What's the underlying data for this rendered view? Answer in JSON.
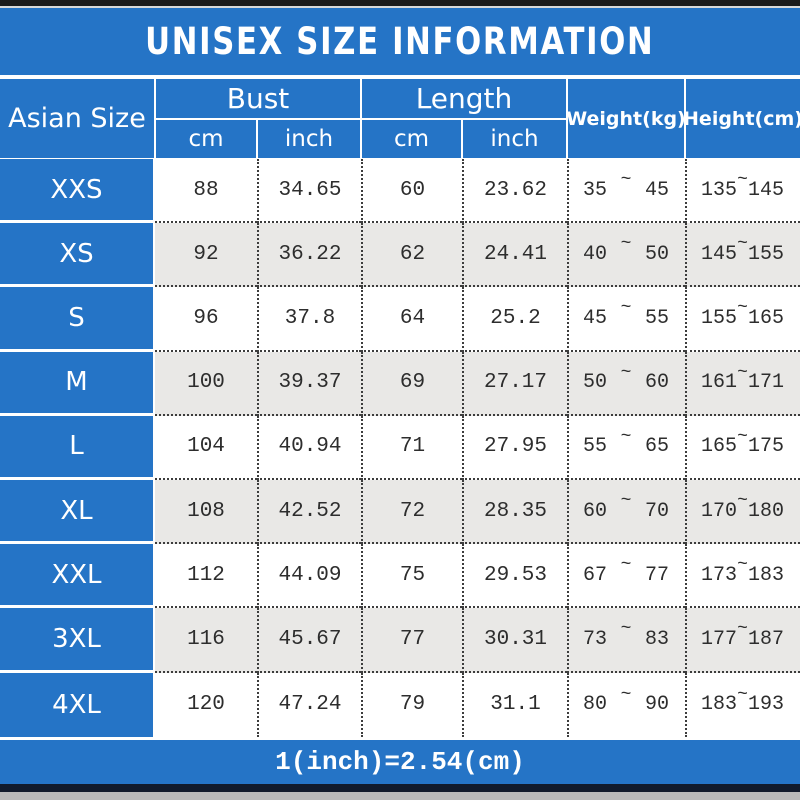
{
  "title": "UNISEX SIZE INFORMATION",
  "footer_note": "1(inch)=2.54(cm)",
  "colors": {
    "banner_blue": "#2574c6",
    "alt_row_gray": "#e9e8e6",
    "top_bar_black": "#1b1b1b",
    "bottom_bar_navy": "#111a2b",
    "bottom_strip_gray": "#b9b9b9"
  },
  "table": {
    "size_col_header": "Asian Size",
    "groups": [
      {
        "label": "Bust",
        "sub": [
          "cm",
          "inch"
        ]
      },
      {
        "label": "Length",
        "sub": [
          "cm",
          "inch"
        ]
      }
    ],
    "weight_header": "Weight(kg)",
    "height_header": "Height(cm)",
    "tilde": "~"
  },
  "chart_data": {
    "type": "table",
    "title": "UNISEX SIZE INFORMATION",
    "columns": [
      "Asian Size",
      "Bust cm",
      "Bust inch",
      "Length cm",
      "Length inch",
      "Weight(kg) min",
      "Weight(kg) max",
      "Height(cm) min",
      "Height(cm) max"
    ],
    "rows": [
      {
        "size": "XXS",
        "bust_cm": "88",
        "bust_inch": "34.65",
        "length_cm": "60",
        "length_inch": "23.62",
        "weight_min": "35",
        "weight_max": "45",
        "height_min": "135",
        "height_max": "145"
      },
      {
        "size": "XS",
        "bust_cm": "92",
        "bust_inch": "36.22",
        "length_cm": "62",
        "length_inch": "24.41",
        "weight_min": "40",
        "weight_max": "50",
        "height_min": "145",
        "height_max": "155"
      },
      {
        "size": "S",
        "bust_cm": "96",
        "bust_inch": "37.8",
        "length_cm": "64",
        "length_inch": "25.2",
        "weight_min": "45",
        "weight_max": "55",
        "height_min": "155",
        "height_max": "165"
      },
      {
        "size": "M",
        "bust_cm": "100",
        "bust_inch": "39.37",
        "length_cm": "69",
        "length_inch": "27.17",
        "weight_min": "50",
        "weight_max": "60",
        "height_min": "161",
        "height_max": "171"
      },
      {
        "size": "L",
        "bust_cm": "104",
        "bust_inch": "40.94",
        "length_cm": "71",
        "length_inch": "27.95",
        "weight_min": "55",
        "weight_max": "65",
        "height_min": "165",
        "height_max": "175"
      },
      {
        "size": "XL",
        "bust_cm": "108",
        "bust_inch": "42.52",
        "length_cm": "72",
        "length_inch": "28.35",
        "weight_min": "60",
        "weight_max": "70",
        "height_min": "170",
        "height_max": "180"
      },
      {
        "size": "XXL",
        "bust_cm": "112",
        "bust_inch": "44.09",
        "length_cm": "75",
        "length_inch": "29.53",
        "weight_min": "67",
        "weight_max": "77",
        "height_min": "173",
        "height_max": "183"
      },
      {
        "size": "3XL",
        "bust_cm": "116",
        "bust_inch": "45.67",
        "length_cm": "77",
        "length_inch": "30.31",
        "weight_min": "73",
        "weight_max": "83",
        "height_min": "177",
        "height_max": "187"
      },
      {
        "size": "4XL",
        "bust_cm": "120",
        "bust_inch": "47.24",
        "length_cm": "79",
        "length_inch": "31.1",
        "weight_min": "80",
        "weight_max": "90",
        "height_min": "183",
        "height_max": "193"
      }
    ]
  }
}
